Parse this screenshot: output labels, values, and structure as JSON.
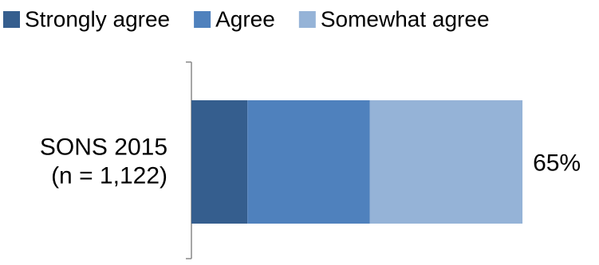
{
  "chart_data": {
    "type": "stacked-bar-horizontal",
    "categories": [
      [
        "SONS 2015",
        "(n = 1,122)"
      ]
    ],
    "series": [
      {
        "name": "Strongly agree",
        "color": "#355e8e",
        "values": [
          11
        ]
      },
      {
        "name": "Agree",
        "color": "#4f81bd",
        "values": [
          24
        ]
      },
      {
        "name": "Somewhat agree",
        "color": "#95b3d7",
        "values": [
          30
        ]
      }
    ],
    "totals": [
      65
    ],
    "total_labels": [
      "65%"
    ],
    "xlim": [
      0,
      70
    ],
    "legend": "top"
  }
}
